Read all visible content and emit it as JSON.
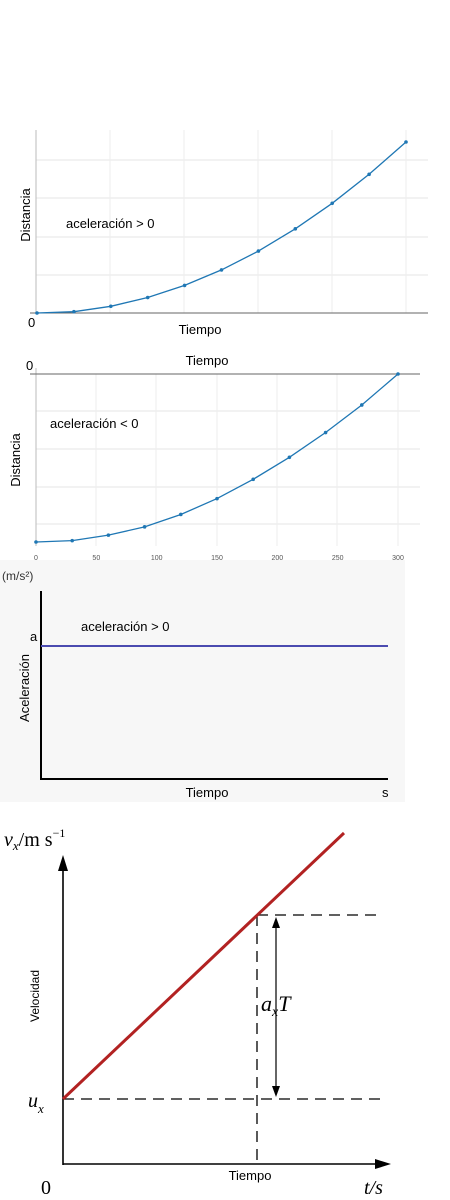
{
  "chart_data": [
    {
      "type": "line",
      "ylabel": "Distancia",
      "xlabel": "Tiempo",
      "origin_label": "0",
      "annotation": "aceleración > 0",
      "x": [
        0,
        1,
        2,
        3,
        4,
        5,
        6,
        7,
        8,
        9,
        10
      ],
      "values": [
        0,
        1,
        5,
        11.5,
        20.5,
        32,
        46,
        62.5,
        81.5,
        103,
        127
      ],
      "ylim": [
        0,
        127
      ],
      "grid": true,
      "color": "#1f77b4"
    },
    {
      "type": "line",
      "ylabel": "Distancia",
      "xlabel": "Tiempo",
      "origin_label": "0",
      "annotation": "aceleración < 0",
      "x": [
        0,
        30,
        60,
        90,
        120,
        150,
        180,
        210,
        240,
        270,
        300
      ],
      "xticks": [
        "0",
        "50",
        "100",
        "150",
        "200",
        "250",
        "300"
      ],
      "values": [
        0,
        -1,
        -5,
        -11,
        -20,
        -31.5,
        -45.5,
        -61.5,
        -79.5,
        -99.5,
        -122
      ],
      "ylim": [
        -122,
        0
      ],
      "grid": true,
      "color": "#1f77b4"
    },
    {
      "type": "line",
      "ylabel": "Aceleración",
      "yunit": "(m/s²)",
      "xlabel": "Tiempo",
      "xunit": "s",
      "y_marker": "a",
      "annotation": "aceleración > 0",
      "x": [
        0,
        1
      ],
      "values": [
        1,
        1
      ],
      "color": "#4b4bb0"
    },
    {
      "type": "line",
      "ylabel": "Velocidad",
      "yunit_var": "v",
      "yunit_sub": "x",
      "yunit_rest": "/m s",
      "yunit_exp": "−1",
      "xlabel": "Tiempo",
      "xunit": "t/s",
      "origin_label": "0",
      "intercept_var": "u",
      "intercept_sub": "x",
      "delta_var": "a",
      "delta_sub": "x",
      "delta_rest": "T",
      "x": [
        0,
        10
      ],
      "values": [
        0,
        10
      ],
      "color": "#b22222"
    }
  ]
}
